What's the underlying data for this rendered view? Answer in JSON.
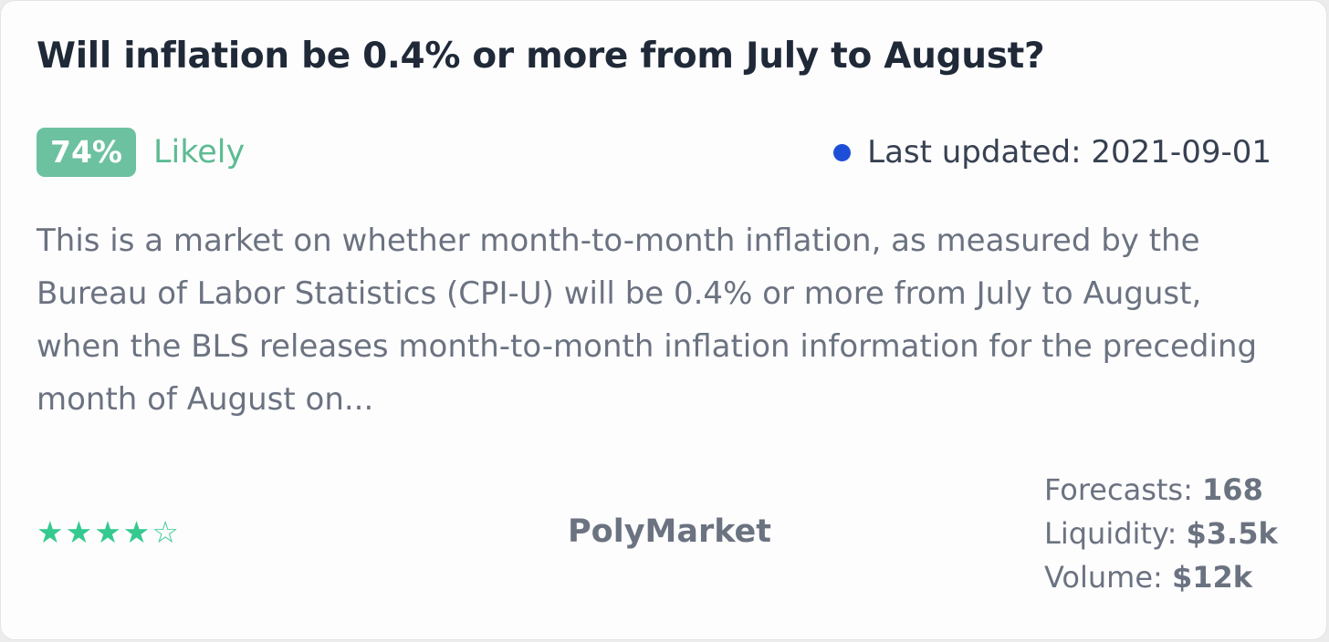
{
  "card": {
    "title": "Will inflation be 0.4% or more from July to August?",
    "probability": "74%",
    "likelihood_label": "Likely",
    "last_updated_prefix": "Last updated:",
    "last_updated_date": "2021-09-01",
    "description": "This is a market on whether month-to-month inflation, as measured by the Bureau of Labor Statistics (CPI-U) will be 0.4% or more from July to August, when the BLS releases month-to-month inflation information for the preceding month of August on...",
    "rating": {
      "filled": 4,
      "total": 5
    },
    "stars": [
      "★",
      "★",
      "★",
      "★",
      "☆"
    ],
    "platform": "PolyMarket",
    "stats": {
      "forecasts_label": "Forecasts:",
      "forecasts_value": "168",
      "liquidity_label": "Liquidity:",
      "liquidity_value": "$3.5k",
      "volume_label": "Volume:",
      "volume_value": "$12k"
    },
    "colors": {
      "badge_bg": "#6cc1a0",
      "likely_text": "#5dbb92",
      "status_dot": "#1d4ed8",
      "stars": "#34c98f"
    }
  }
}
